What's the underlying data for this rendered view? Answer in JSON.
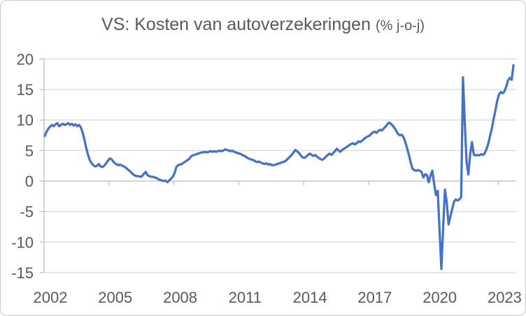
{
  "chart_data": {
    "type": "line",
    "title": "VS: Kosten van autoverzekeringen",
    "title_suffix": "(% j-o-j)",
    "x_tick_labels": [
      "2002",
      "2005",
      "2008",
      "2011",
      "2014",
      "2017",
      "2020",
      "2023"
    ],
    "y_ticks": [
      20,
      15,
      10,
      5,
      0,
      -5,
      -10,
      -15
    ],
    "ylim": [
      -15,
      20
    ],
    "grid": "horizontal",
    "legend": "none",
    "series": [
      {
        "name": "VS kosten van autoverzekeringen (% j-o-j)",
        "start_year": 2002,
        "points_per_year": 12,
        "values": [
          7.4,
          8.1,
          8.6,
          8.9,
          9.2,
          9.0,
          9.3,
          9.5,
          9.0,
          9.2,
          9.4,
          9.2,
          9.3,
          9.5,
          9.2,
          9.4,
          9.1,
          9.3,
          9.0,
          9.2,
          8.8,
          8.0,
          6.8,
          5.4,
          4.3,
          3.4,
          2.9,
          2.6,
          2.4,
          2.5,
          2.8,
          2.4,
          2.3,
          2.5,
          2.9,
          3.3,
          3.7,
          3.6,
          3.2,
          2.9,
          2.7,
          2.6,
          2.7,
          2.5,
          2.4,
          2.2,
          1.9,
          1.7,
          1.4,
          1.1,
          0.9,
          0.8,
          0.8,
          0.7,
          0.8,
          1.2,
          1.5,
          1.0,
          0.8,
          0.7,
          0.7,
          0.6,
          0.5,
          0.3,
          0.2,
          0.1,
          0.0,
          0.1,
          -0.2,
          0.1,
          0.4,
          0.7,
          1.3,
          2.3,
          2.6,
          2.7,
          2.8,
          3.0,
          3.2,
          3.4,
          3.6,
          4.0,
          4.2,
          4.3,
          4.4,
          4.5,
          4.6,
          4.7,
          4.7,
          4.8,
          4.7,
          4.8,
          4.9,
          4.8,
          4.9,
          4.8,
          4.9,
          5.0,
          4.9,
          5.0,
          5.2,
          5.1,
          5.0,
          4.9,
          5.0,
          4.8,
          4.7,
          4.6,
          4.5,
          4.4,
          4.2,
          4.1,
          3.9,
          3.7,
          3.6,
          3.5,
          3.4,
          3.2,
          3.1,
          3.2,
          3.0,
          2.9,
          2.8,
          2.9,
          2.7,
          2.8,
          2.6,
          2.6,
          2.7,
          2.8,
          2.9,
          3.0,
          3.1,
          3.2,
          3.4,
          3.7,
          4.0,
          4.3,
          4.7,
          5.1,
          4.9,
          4.6,
          4.2,
          3.9,
          3.8,
          4.0,
          4.3,
          4.5,
          4.3,
          4.1,
          4.3,
          4.0,
          3.8,
          3.6,
          3.5,
          3.7,
          4.0,
          4.3,
          4.5,
          4.3,
          4.6,
          4.9,
          5.3,
          5.0,
          4.8,
          5.1,
          5.3,
          5.5,
          5.7,
          5.9,
          6.1,
          6.2,
          6.0,
          6.2,
          6.5,
          6.4,
          6.6,
          6.9,
          7.1,
          7.3,
          7.4,
          7.7,
          8.0,
          8.1,
          7.9,
          8.2,
          8.4,
          8.3,
          8.6,
          8.9,
          9.3,
          9.6,
          9.4,
          9.1,
          8.7,
          8.2,
          7.7,
          7.5,
          7.6,
          7.2,
          6.4,
          5.4,
          4.3,
          3.0,
          2.0,
          1.8,
          1.7,
          1.8,
          1.7,
          1.5,
          0.6,
          1.1,
          1.0,
          -0.2,
          0.9,
          1.7,
          -0.5,
          -2.3,
          -1.6,
          -8.0,
          -14.4,
          -7.5,
          -1.4,
          -3.5,
          -7.1,
          -5.8,
          -4.6,
          -3.4,
          -3.0,
          -3.2,
          -3.0,
          -2.6,
          17.0,
          9.5,
          3.0,
          1.1,
          4.5,
          6.4,
          4.3,
          4.2,
          4.3,
          4.2,
          4.4,
          4.3,
          4.5,
          5.2,
          6.1,
          7.4,
          8.6,
          10.2,
          11.6,
          13.2,
          14.2,
          14.6,
          14.4,
          14.7,
          15.5,
          16.5,
          16.9,
          16.6,
          19.0
        ]
      }
    ],
    "colors": {
      "line": "#4472C4",
      "gridline": "#D9D9D9",
      "axis": "#BFBFBF",
      "text": "#595959",
      "frame_border": "#C9C9C9",
      "background": "#FFFFFF"
    }
  }
}
